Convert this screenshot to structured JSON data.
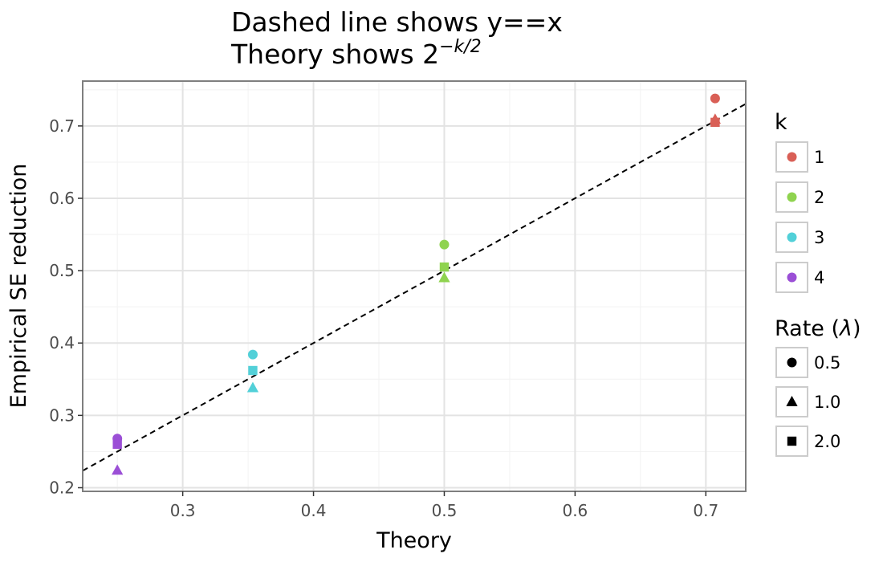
{
  "chart_data": {
    "type": "scatter",
    "title_line1": "Dashed line shows y==x",
    "title_line2_prefix": "Theory shows 2",
    "title_line2_exponent": "−k/2",
    "xlabel": "Theory",
    "ylabel": "Empirical SE reduction",
    "xlim": [
      0.2235,
      0.7305
    ],
    "ylim": [
      0.195,
      0.762
    ],
    "x_ticks": [
      0.3,
      0.4,
      0.5,
      0.6,
      0.7
    ],
    "y_ticks": [
      0.2,
      0.3,
      0.4,
      0.5,
      0.6,
      0.7
    ],
    "x_tick_labels": [
      "0.3",
      "0.4",
      "0.5",
      "0.6",
      "0.7"
    ],
    "y_tick_labels": [
      "0.2",
      "0.3",
      "0.4",
      "0.5",
      "0.6",
      "0.7"
    ],
    "grid": true,
    "reference_line": "y = x, dashed",
    "legend_position": "right",
    "legend_color": {
      "title": "k",
      "entries": [
        {
          "label": "1",
          "color": "#d95f56"
        },
        {
          "label": "2",
          "color": "#8fd34f"
        },
        {
          "label": "3",
          "color": "#52d0d8"
        },
        {
          "label": "4",
          "color": "#9b4fd6"
        }
      ]
    },
    "legend_shape": {
      "title_prefix": "Rate (",
      "title_symbol": "λ",
      "title_suffix": ")",
      "entries": [
        {
          "label": "0.5",
          "shape": "circle"
        },
        {
          "label": "1.0",
          "shape": "triangle"
        },
        {
          "label": "2.0",
          "shape": "square"
        }
      ]
    },
    "points": [
      {
        "k": "1",
        "rate": "0.5",
        "x": 0.7071,
        "y": 0.738
      },
      {
        "k": "1",
        "rate": "1.0",
        "x": 0.7071,
        "y": 0.709
      },
      {
        "k": "1",
        "rate": "2.0",
        "x": 0.7071,
        "y": 0.705
      },
      {
        "k": "2",
        "rate": "0.5",
        "x": 0.5,
        "y": 0.536
      },
      {
        "k": "2",
        "rate": "1.0",
        "x": 0.5,
        "y": 0.49
      },
      {
        "k": "2",
        "rate": "2.0",
        "x": 0.5,
        "y": 0.505
      },
      {
        "k": "3",
        "rate": "0.5",
        "x": 0.3536,
        "y": 0.384
      },
      {
        "k": "3",
        "rate": "1.0",
        "x": 0.3536,
        "y": 0.338
      },
      {
        "k": "3",
        "rate": "2.0",
        "x": 0.3536,
        "y": 0.362
      },
      {
        "k": "4",
        "rate": "0.5",
        "x": 0.25,
        "y": 0.268
      },
      {
        "k": "4",
        "rate": "1.0",
        "x": 0.25,
        "y": 0.224
      },
      {
        "k": "4",
        "rate": "2.0",
        "x": 0.25,
        "y": 0.26
      }
    ]
  }
}
